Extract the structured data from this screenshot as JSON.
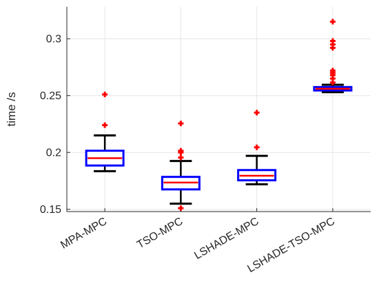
{
  "chart_data": {
    "type": "box",
    "title": "",
    "xlabel": "",
    "ylabel": "time /s",
    "ylim": [
      0.148,
      0.328
    ],
    "yticks": [
      0.15,
      0.2,
      0.25,
      0.3
    ],
    "ytick_labels": [
      "0.15",
      "0.2",
      "0.25",
      "0.3"
    ],
    "grid": true,
    "categories": [
      "MPA-MPC",
      "TSO-MPC",
      "LSHADE-MPC",
      "LSHADE-TSO-MPC"
    ],
    "boxes": [
      {
        "category": "MPA-MPC",
        "whisker_low": 0.1835,
        "q1": 0.1885,
        "median": 0.195,
        "q3": 0.2015,
        "whisker_high": 0.215,
        "outliers": [
          0.224,
          0.251
        ]
      },
      {
        "category": "TSO-MPC",
        "whisker_low": 0.155,
        "q1": 0.1675,
        "median": 0.1735,
        "q3": 0.1785,
        "whisker_high": 0.1925,
        "outliers": [
          0.151,
          0.1955,
          0.2,
          0.2015,
          0.2255
        ]
      },
      {
        "category": "LSHADE-MPC",
        "whisker_low": 0.172,
        "q1": 0.1755,
        "median": 0.1795,
        "q3": 0.1845,
        "whisker_high": 0.197,
        "outliers": [
          0.2045,
          0.235
        ]
      },
      {
        "category": "LSHADE-TSO-MPC",
        "whisker_low": 0.253,
        "q1": 0.2545,
        "median": 0.256,
        "q3": 0.2575,
        "whisker_high": 0.2595,
        "outliers": [
          0.2615,
          0.265,
          0.268,
          0.27,
          0.272,
          0.292,
          0.295,
          0.298,
          0.315
        ]
      }
    ],
    "colors": {
      "box": "#0000ff",
      "median": "#ff0000",
      "whisker": "#000000",
      "outlier": "#ff0000",
      "grid": "#e6e6e6",
      "axis": "#262626"
    }
  }
}
